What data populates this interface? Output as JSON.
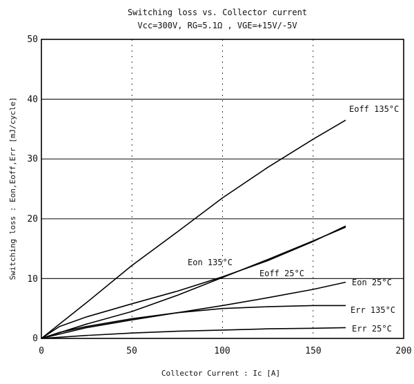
{
  "chart_data": {
    "type": "line",
    "title": "Switching loss vs. Collector current",
    "subtitle": "Vcc=300V, RG=5.1Ω , VGE=+15V/-5V",
    "xlabel": "Collector Current : Ic     [A]",
    "ylabel": "Switching loss  :  Eon,Eoff,Err     [mJ/cycle]",
    "xlim": [
      0,
      200
    ],
    "ylim": [
      0,
      50
    ],
    "x_ticks": [
      "0",
      "50",
      "100",
      "150",
      "200"
    ],
    "y_ticks": [
      "0",
      "10",
      "20",
      "30",
      "40",
      "50"
    ],
    "grid": true,
    "series": [
      {
        "name": "Eoff 135°C",
        "x": [
          0,
          25,
          50,
          75,
          100,
          125,
          150,
          168
        ],
        "y": [
          0,
          6,
          12.2,
          17.8,
          23.5,
          28.6,
          33.3,
          36.5
        ]
      },
      {
        "name": "Eoff 25°C",
        "x": [
          0,
          25,
          50,
          75,
          100,
          125,
          150,
          168
        ],
        "y": [
          0,
          2.4,
          4.5,
          7.2,
          10.2,
          13.2,
          16.3,
          18.6
        ]
      },
      {
        "name": "Eon 135°C",
        "x": [
          0,
          10,
          25,
          50,
          75,
          100,
          125,
          150,
          168
        ],
        "y": [
          0,
          2,
          3.6,
          5.8,
          7.9,
          10.3,
          13,
          16.2,
          18.8
        ]
      },
      {
        "name": "Eon 25°C",
        "x": [
          0,
          25,
          50,
          75,
          100,
          125,
          150,
          168
        ],
        "y": [
          0,
          1.8,
          3.1,
          4.3,
          5.5,
          6.8,
          8.2,
          9.4
        ]
      },
      {
        "name": "Err 135°C",
        "x": [
          0,
          10,
          25,
          50,
          75,
          100,
          125,
          150,
          168
        ],
        "y": [
          0,
          1,
          2,
          3.3,
          4.3,
          5.0,
          5.3,
          5.5,
          5.5
        ]
      },
      {
        "name": "Err 25°C",
        "x": [
          0,
          25,
          50,
          75,
          100,
          125,
          150,
          168
        ],
        "y": [
          0,
          0.5,
          0.9,
          1.2,
          1.4,
          1.6,
          1.7,
          1.8
        ]
      }
    ]
  }
}
